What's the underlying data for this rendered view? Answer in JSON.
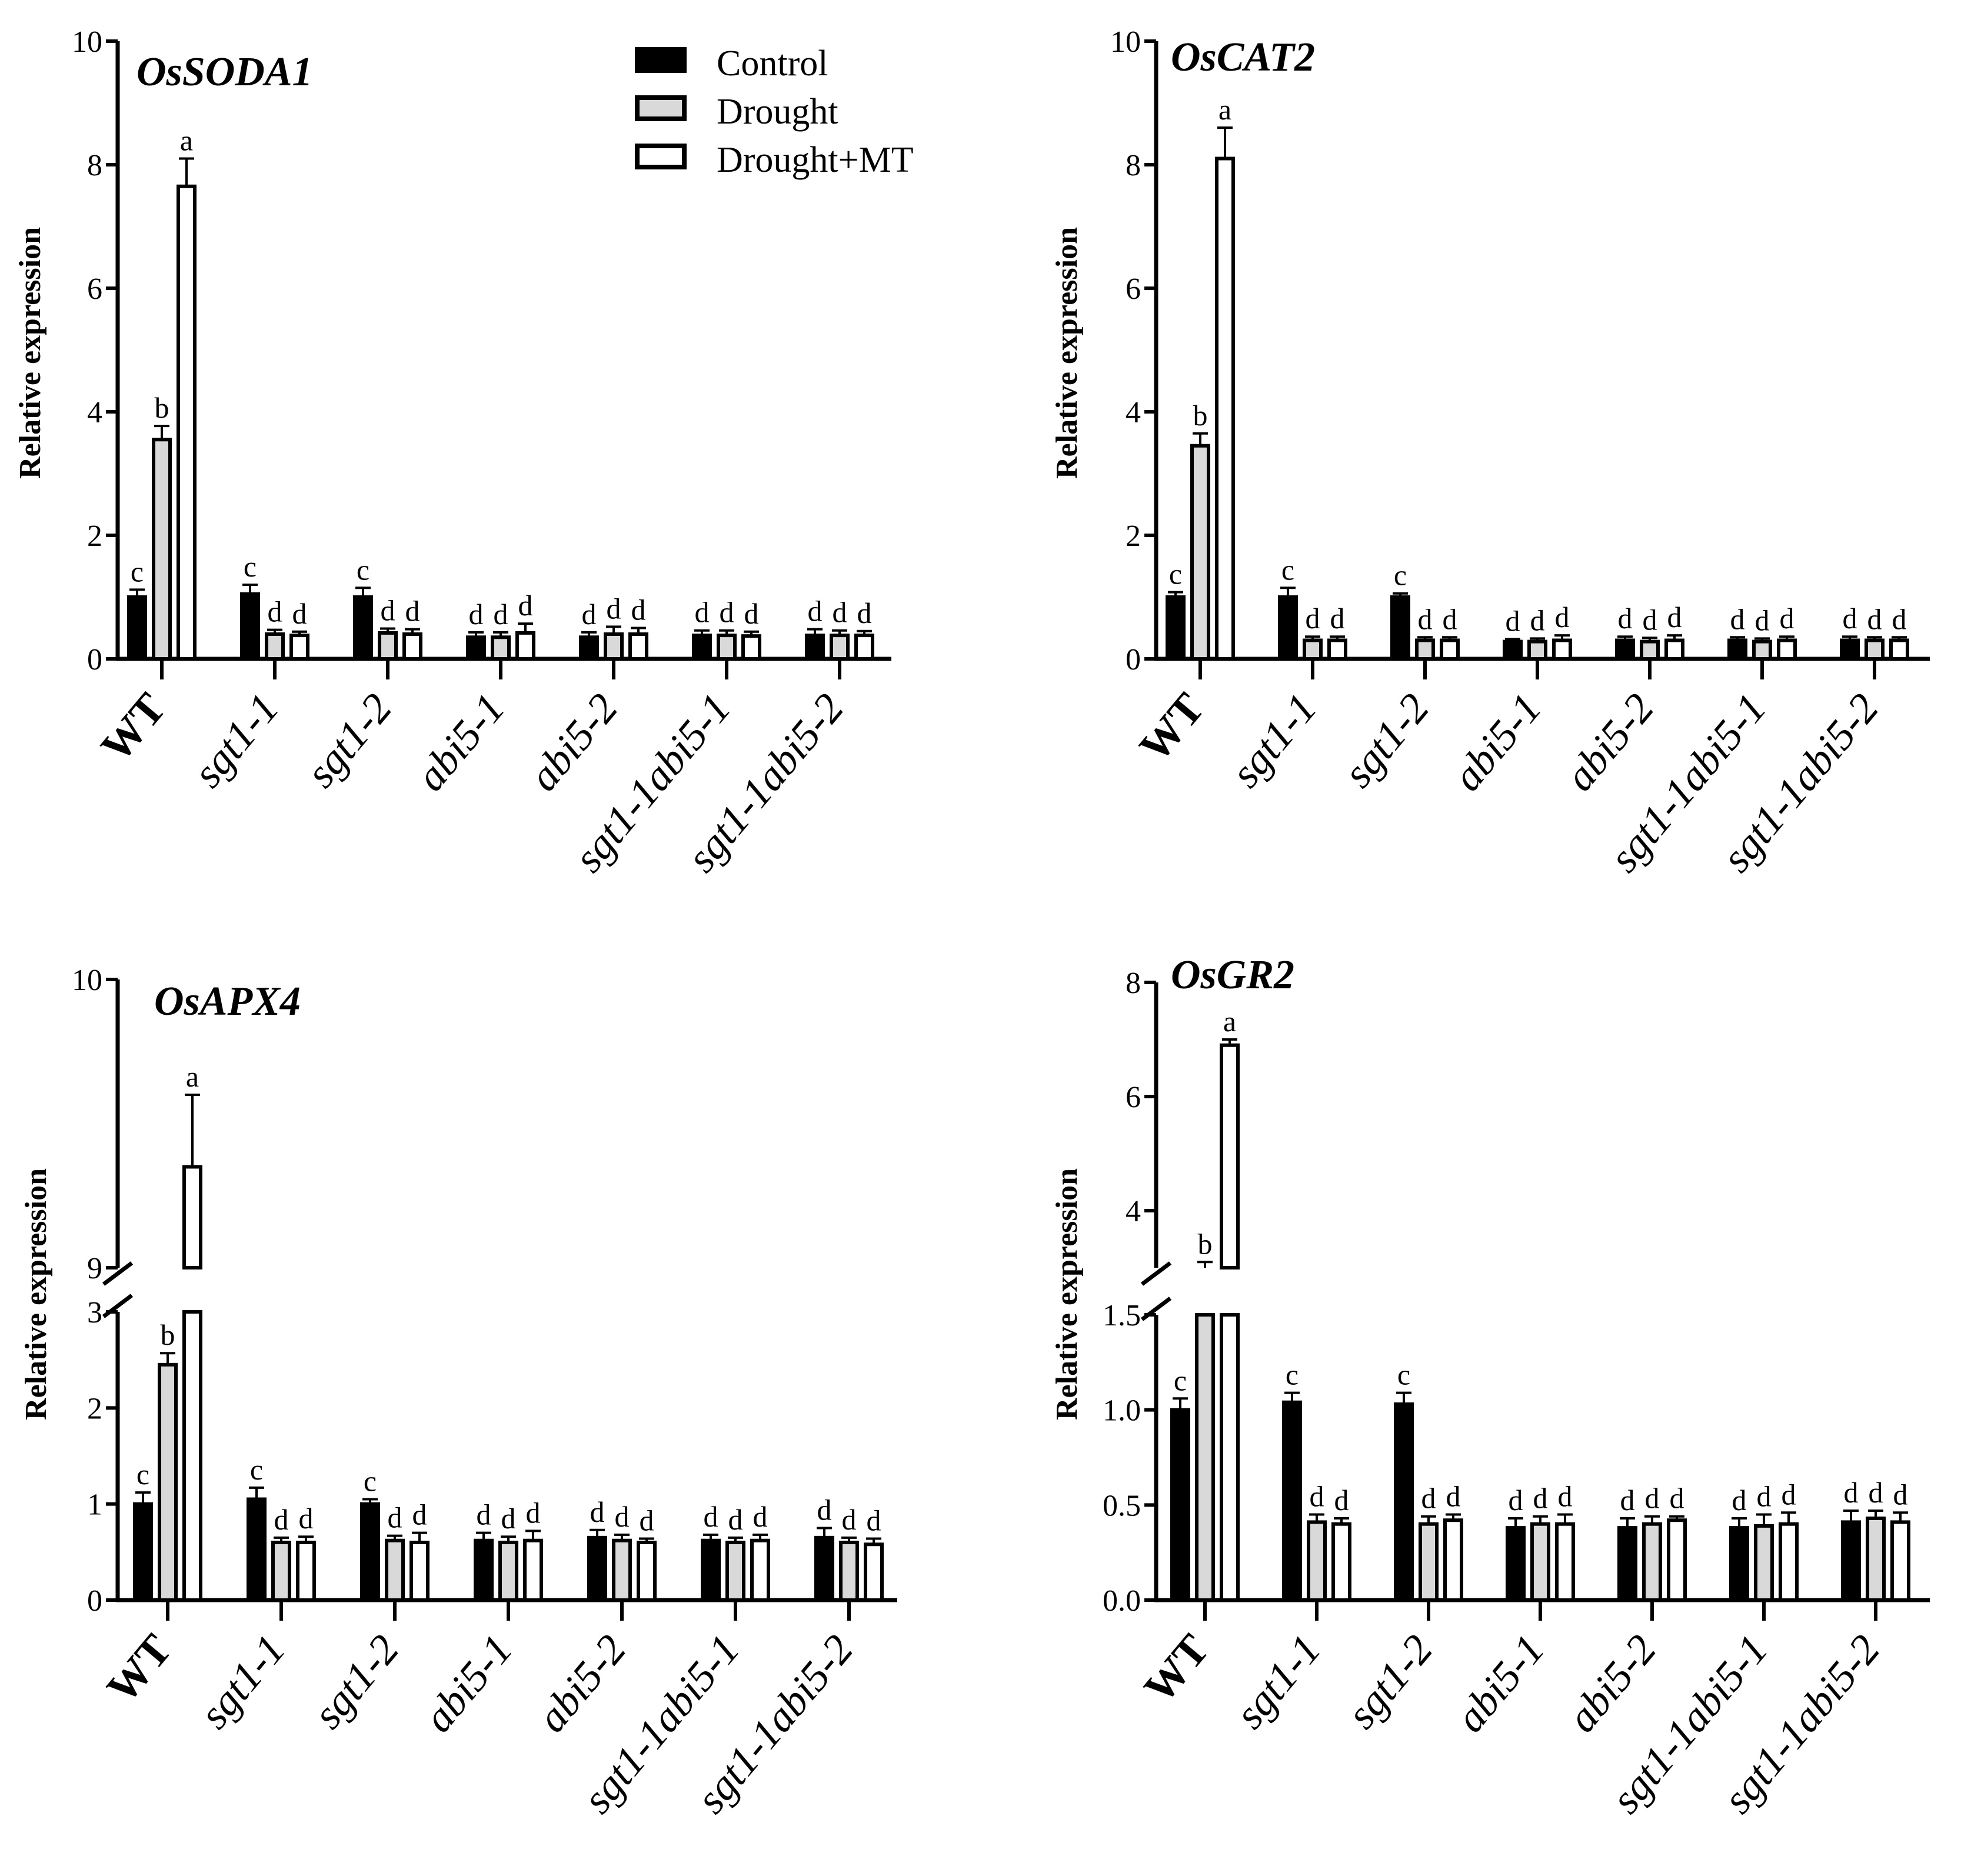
{
  "legend": {
    "entries": [
      {
        "name": "Control",
        "color": "#000000"
      },
      {
        "name": "Drought",
        "color": "#d9d9d9"
      },
      {
        "name": "Drought+MT",
        "color": "#ffffff"
      }
    ]
  },
  "chart_data": [
    {
      "type": "bar",
      "title": "OsSODA1",
      "ylabel": "Relative expression",
      "ylim": [
        0,
        10
      ],
      "yticks": [
        "0",
        "2",
        "4",
        "6",
        "8",
        "10"
      ],
      "categories": [
        "WT",
        "sgt1-1",
        "sgt1-2",
        "abi5-1",
        "abi5-2",
        "sgt1-1abi5-1",
        "sgt1-1abi5-2"
      ],
      "series": [
        {
          "name": "Control",
          "values": [
            1.0,
            1.05,
            1.0,
            0.35,
            0.35,
            0.38,
            0.38
          ],
          "errors": [
            0.12,
            0.15,
            0.15,
            0.08,
            0.08,
            0.08,
            0.1
          ],
          "sig": [
            "c",
            "c",
            "c",
            "d",
            "d",
            "d",
            "d"
          ]
        },
        {
          "name": "Drought",
          "values": [
            3.55,
            0.4,
            0.42,
            0.35,
            0.4,
            0.38,
            0.38
          ],
          "errors": [
            0.22,
            0.07,
            0.07,
            0.08,
            0.12,
            0.08,
            0.08
          ],
          "sig": [
            "b",
            "d",
            "d",
            "d",
            "d",
            "d",
            "d"
          ]
        },
        {
          "name": "Drought+MT",
          "values": [
            7.65,
            0.38,
            0.4,
            0.42,
            0.4,
            0.37,
            0.38
          ],
          "errors": [
            0.45,
            0.06,
            0.08,
            0.15,
            0.1,
            0.07,
            0.07
          ],
          "sig": [
            "a",
            "d",
            "d",
            "d",
            "d",
            "d",
            "d"
          ]
        }
      ]
    },
    {
      "type": "bar",
      "title": "OsCAT2",
      "ylabel": "Relative expression",
      "ylim": [
        0,
        10
      ],
      "yticks": [
        "0",
        "2",
        "4",
        "6",
        "8",
        "10"
      ],
      "categories": [
        "WT",
        "sgt1-1",
        "sgt1-2",
        "abi5-1",
        "abi5-2",
        "sgt1-1abi5-1",
        "sgt1-1abi5-2"
      ],
      "series": [
        {
          "name": "Control",
          "values": [
            1.0,
            1.0,
            1.0,
            0.28,
            0.3,
            0.3,
            0.3
          ],
          "errors": [
            0.08,
            0.15,
            0.06,
            0.04,
            0.06,
            0.05,
            0.06
          ],
          "sig": [
            "c",
            "c",
            "c",
            "d",
            "d",
            "d",
            "d"
          ]
        },
        {
          "name": "Drought",
          "values": [
            3.45,
            0.3,
            0.3,
            0.28,
            0.28,
            0.28,
            0.3
          ],
          "errors": [
            0.2,
            0.06,
            0.05,
            0.05,
            0.06,
            0.05,
            0.05
          ],
          "sig": [
            "b",
            "d",
            "d",
            "d",
            "d",
            "d",
            "d"
          ]
        },
        {
          "name": "Drought+MT",
          "values": [
            8.1,
            0.3,
            0.3,
            0.3,
            0.3,
            0.3,
            0.3
          ],
          "errors": [
            0.5,
            0.06,
            0.05,
            0.08,
            0.08,
            0.06,
            0.05
          ],
          "sig": [
            "a",
            "d",
            "d",
            "d",
            "d",
            "d",
            "d"
          ]
        }
      ]
    },
    {
      "type": "bar",
      "title": "OsAPX4",
      "ylabel": "Relative expression",
      "ylim_lower": [
        0,
        3
      ],
      "ylim_upper": [
        9,
        10
      ],
      "yticks_lower": [
        "0",
        "1",
        "2",
        "3"
      ],
      "yticks_upper": [
        "9",
        "10"
      ],
      "categories": [
        "WT",
        "sgt1-1",
        "sgt1-2",
        "abi5-1",
        "abi5-2",
        "sgt1-1abi5-1",
        "sgt1-1abi5-2"
      ],
      "series": [
        {
          "name": "Control",
          "values": [
            1.0,
            1.05,
            1.0,
            0.62,
            0.65,
            0.62,
            0.65
          ],
          "errors": [
            0.12,
            0.12,
            0.05,
            0.08,
            0.08,
            0.06,
            0.1
          ],
          "sig": [
            "c",
            "c",
            "c",
            "d",
            "d",
            "d",
            "d"
          ]
        },
        {
          "name": "Drought",
          "values": [
            2.45,
            0.6,
            0.62,
            0.6,
            0.62,
            0.6,
            0.6
          ],
          "errors": [
            0.12,
            0.05,
            0.05,
            0.06,
            0.06,
            0.05,
            0.05
          ],
          "sig": [
            "b",
            "d",
            "d",
            "d",
            "d",
            "d",
            "d"
          ]
        },
        {
          "name": "Drought+MT",
          "values": [
            9.35,
            0.6,
            0.6,
            0.62,
            0.6,
            0.62,
            0.58
          ],
          "errors": [
            0.25,
            0.06,
            0.1,
            0.1,
            0.04,
            0.06,
            0.06
          ],
          "sig": [
            "a",
            "d",
            "d",
            "d",
            "d",
            "d",
            "d"
          ]
        }
      ]
    },
    {
      "type": "bar",
      "title": "OsGR2",
      "ylabel": "Relative expression",
      "ylim_lower": [
        0,
        1.5
      ],
      "ylim_upper": [
        3,
        8
      ],
      "yticks_lower": [
        "0.0",
        "0.5",
        "1.0",
        "1.5"
      ],
      "yticks_upper": [
        "4",
        "6",
        "8"
      ],
      "categories": [
        "WT",
        "sgt1-1",
        "sgt1-2",
        "abi5-1",
        "abi5-2",
        "sgt1-1abi5-1",
        "sgt1-1abi5-2"
      ],
      "series": [
        {
          "name": "Control",
          "values": [
            1.0,
            1.04,
            1.03,
            0.38,
            0.38,
            0.38,
            0.41
          ],
          "errors": [
            0.06,
            0.05,
            0.06,
            0.05,
            0.05,
            0.05,
            0.06
          ],
          "sig": [
            "c",
            "c",
            "c",
            "d",
            "d",
            "d",
            "d"
          ]
        },
        {
          "name": "Drought",
          "values": [
            2.95,
            0.41,
            0.4,
            0.4,
            0.4,
            0.39,
            0.43
          ],
          "errors": [
            0.15,
            0.04,
            0.04,
            0.04,
            0.04,
            0.06,
            0.04
          ],
          "sig": [
            "b",
            "d",
            "d",
            "d",
            "d",
            "d",
            "d"
          ]
        },
        {
          "name": "Drought+MT",
          "values": [
            6.9,
            0.4,
            0.42,
            0.4,
            0.42,
            0.4,
            0.41
          ],
          "errors": [
            0.1,
            0.03,
            0.03,
            0.05,
            0.02,
            0.06,
            0.05
          ],
          "sig": [
            "a",
            "d",
            "d",
            "d",
            "d",
            "d",
            "d"
          ]
        }
      ]
    }
  ]
}
